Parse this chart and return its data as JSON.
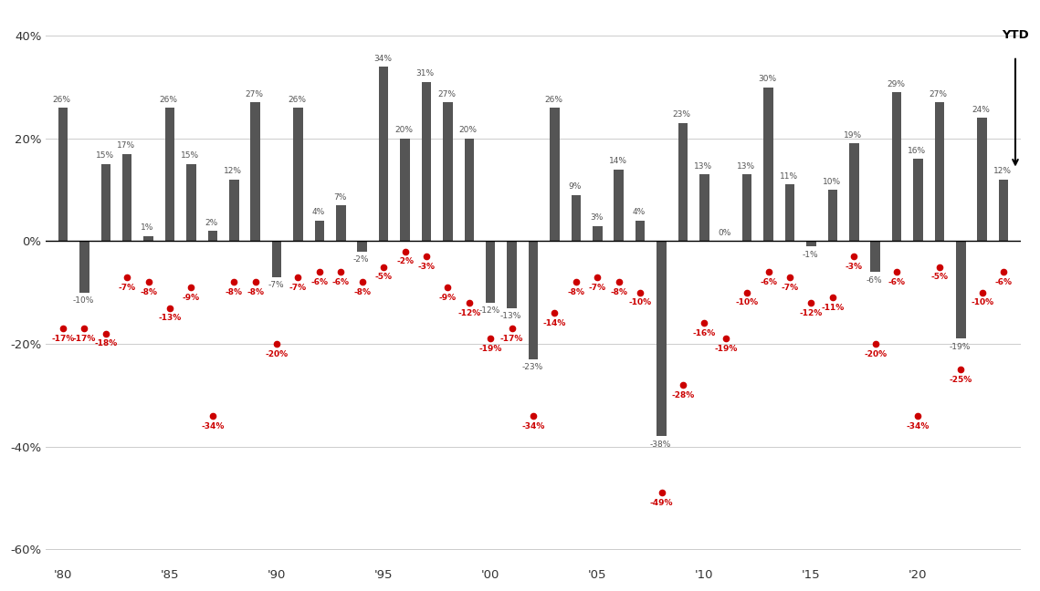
{
  "years": [
    1980,
    1981,
    1982,
    1983,
    1984,
    1985,
    1986,
    1987,
    1988,
    1989,
    1990,
    1991,
    1992,
    1993,
    1994,
    1995,
    1996,
    1997,
    1998,
    1999,
    2000,
    2001,
    2002,
    2003,
    2004,
    2005,
    2006,
    2007,
    2008,
    2009,
    2010,
    2011,
    2012,
    2013,
    2014,
    2015,
    2016,
    2017,
    2018,
    2019,
    2020,
    2021,
    2022,
    2023,
    2024
  ],
  "calendar_returns": [
    26,
    -10,
    15,
    17,
    1,
    26,
    15,
    2,
    12,
    27,
    -7,
    26,
    4,
    7,
    -2,
    34,
    20,
    31,
    27,
    20,
    -12,
    -13,
    -23,
    26,
    9,
    3,
    14,
    4,
    -38,
    23,
    13,
    0,
    13,
    30,
    11,
    -1,
    10,
    19,
    -6,
    29,
    16,
    27,
    -19,
    24,
    12
  ],
  "intra_year_declines": [
    -17,
    -17,
    -18,
    -7,
    -8,
    -13,
    -9,
    -34,
    -8,
    -8,
    -20,
    -7,
    -6,
    -6,
    -8,
    -5,
    -2,
    -3,
    -9,
    -12,
    -19,
    -17,
    -34,
    -14,
    -8,
    -7,
    -8,
    -10,
    -49,
    -28,
    -16,
    -19,
    -10,
    -6,
    -7,
    -12,
    -11,
    -3,
    -20,
    -6,
    -34,
    -5,
    -25,
    -10,
    -6
  ],
  "bar_color": "#555555",
  "dot_color": "#cc0000",
  "label_color_bar": "#555555",
  "label_color_dot": "#cc0000",
  "background_color": "#ffffff",
  "grid_color": "#cccccc",
  "ylim": [
    -63,
    45
  ],
  "bar_width": 0.45
}
